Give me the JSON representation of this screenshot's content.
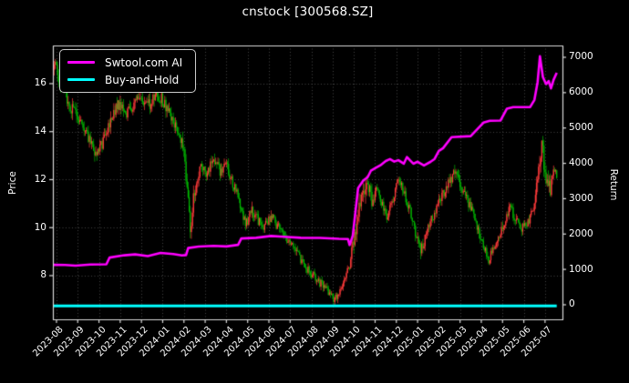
{
  "header": {
    "title": "cnstock [300568.SZ]"
  },
  "chart_data": {
    "type": "mixed",
    "title": "cnstock [300568.SZ]",
    "background": "#000000",
    "text_color": "#ffffff",
    "grid": {
      "on": true,
      "color": "#4d4d4d",
      "style": "dotted"
    },
    "spine_color": "#d9d9d9",
    "legend_position": "upper-left",
    "x_axis": {
      "tick_labels": [
        "2023-08",
        "2023-09",
        "2023-10",
        "2023-11",
        "2023-12",
        "2024-01",
        "2024-02",
        "2024-03",
        "2024-04",
        "2024-05",
        "2024-06",
        "2024-07",
        "2024-08",
        "2024-09",
        "2024-10",
        "2024-11",
        "2024-12",
        "2025-01",
        "2025-02",
        "2025-03",
        "2025-04",
        "2025-05",
        "2025-06",
        "2025-07"
      ],
      "range_months": [
        -0.17,
        23.82
      ],
      "tick_rotation_deg": 45
    },
    "left_axis": {
      "label": "Price",
      "ticks": [
        8,
        10,
        12,
        14,
        16
      ],
      "range": [
        6.18,
        17.59
      ]
    },
    "right_axis": {
      "label": "Return",
      "ticks": [
        0,
        1000,
        2000,
        3000,
        4000,
        5000,
        6000,
        7000
      ],
      "range": [
        -412,
        7334
      ]
    },
    "series": [
      {
        "name": "Swtool.com AI",
        "type": "line",
        "axis": "right",
        "color": "#ff00ff",
        "width": 2.6,
        "points": [
          [
            -0.17,
            1130
          ],
          [
            0.4,
            1125
          ],
          [
            0.9,
            1105
          ],
          [
            1.6,
            1140
          ],
          [
            2.35,
            1145
          ],
          [
            2.5,
            1335
          ],
          [
            3.2,
            1400
          ],
          [
            3.7,
            1425
          ],
          [
            4.3,
            1375
          ],
          [
            4.9,
            1465
          ],
          [
            5.5,
            1435
          ],
          [
            5.9,
            1395
          ],
          [
            6.1,
            1405
          ],
          [
            6.2,
            1605
          ],
          [
            6.7,
            1645
          ],
          [
            7.4,
            1665
          ],
          [
            8.0,
            1650
          ],
          [
            8.55,
            1695
          ],
          [
            8.7,
            1875
          ],
          [
            9.4,
            1895
          ],
          [
            10.1,
            1945
          ],
          [
            10.7,
            1925
          ],
          [
            11.5,
            1895
          ],
          [
            12.4,
            1890
          ],
          [
            13.3,
            1865
          ],
          [
            13.72,
            1860
          ],
          [
            13.8,
            1690
          ],
          [
            13.95,
            1960
          ],
          [
            14.05,
            2500
          ],
          [
            14.2,
            3300
          ],
          [
            14.45,
            3520
          ],
          [
            14.65,
            3610
          ],
          [
            14.8,
            3790
          ],
          [
            15.0,
            3860
          ],
          [
            15.25,
            3945
          ],
          [
            15.5,
            4065
          ],
          [
            15.7,
            4120
          ],
          [
            15.9,
            4050
          ],
          [
            16.1,
            4090
          ],
          [
            16.35,
            3990
          ],
          [
            16.5,
            4180
          ],
          [
            16.65,
            4080
          ],
          [
            16.8,
            3990
          ],
          [
            17.0,
            4045
          ],
          [
            17.3,
            3940
          ],
          [
            17.6,
            4040
          ],
          [
            17.8,
            4125
          ],
          [
            18.0,
            4350
          ],
          [
            18.2,
            4430
          ],
          [
            18.6,
            4740
          ],
          [
            19.5,
            4770
          ],
          [
            20.1,
            5150
          ],
          [
            20.4,
            5205
          ],
          [
            20.9,
            5210
          ],
          [
            21.2,
            5545
          ],
          [
            21.5,
            5590
          ],
          [
            22.3,
            5595
          ],
          [
            22.5,
            5795
          ],
          [
            22.65,
            6300
          ],
          [
            22.76,
            7030
          ],
          [
            22.9,
            6440
          ],
          [
            23.05,
            6240
          ],
          [
            23.17,
            6330
          ],
          [
            23.28,
            6120
          ],
          [
            23.4,
            6360
          ],
          [
            23.55,
            6560
          ]
        ]
      },
      {
        "name": "Buy-and-Hold",
        "type": "line",
        "axis": "right",
        "color": "#00ffff",
        "width": 3.0,
        "points": [
          [
            -0.17,
            -30
          ],
          [
            23.55,
            -30
          ]
        ]
      },
      {
        "name": "price-candles",
        "type": "candlestick",
        "axis": "left",
        "up_color": "#ff3a3a",
        "down_color": "#00b400",
        "candles_per_month": 20,
        "body_width": 1.3,
        "wick_width": 0.7,
        "seed": 42,
        "base_noise": 0.011,
        "default_extra_noise": 0.05,
        "wick_mult": 1.35,
        "extra_noise_zones": [
          [
            5.9,
            6.6,
            0.16
          ],
          [
            13.9,
            14.9,
            0.18
          ],
          [
            16.9,
            17.3,
            0.1
          ],
          [
            22.55,
            23.3,
            0.16
          ]
        ],
        "month_range": [
          -0.1,
          23.6
        ],
        "close_anchors": [
          [
            -0.17,
            16.9
          ],
          [
            0.0,
            16.5
          ],
          [
            0.3,
            15.8
          ],
          [
            0.6,
            15.1
          ],
          [
            1.0,
            14.6
          ],
          [
            1.5,
            13.7
          ],
          [
            1.85,
            13.1
          ],
          [
            2.2,
            13.6
          ],
          [
            2.6,
            14.6
          ],
          [
            3.0,
            15.2
          ],
          [
            3.35,
            14.7
          ],
          [
            3.7,
            15.3
          ],
          [
            4.0,
            15.5
          ],
          [
            4.3,
            15.0
          ],
          [
            4.65,
            15.6
          ],
          [
            5.0,
            15.3
          ],
          [
            5.35,
            14.6
          ],
          [
            5.7,
            14.1
          ],
          [
            5.95,
            13.4
          ],
          [
            6.15,
            11.6
          ],
          [
            6.3,
            9.8
          ],
          [
            6.5,
            11.6
          ],
          [
            6.8,
            12.6
          ],
          [
            7.1,
            12.2
          ],
          [
            7.4,
            12.9
          ],
          [
            7.7,
            12.3
          ],
          [
            8.0,
            12.6
          ],
          [
            8.3,
            11.8
          ],
          [
            8.6,
            11.2
          ],
          [
            8.9,
            10.1
          ],
          [
            9.2,
            10.7
          ],
          [
            9.5,
            10.3
          ],
          [
            9.8,
            10.0
          ],
          [
            10.1,
            10.5
          ],
          [
            10.45,
            10.0
          ],
          [
            10.8,
            9.6
          ],
          [
            11.1,
            9.2
          ],
          [
            11.4,
            8.8
          ],
          [
            11.7,
            8.4
          ],
          [
            12.0,
            8.1
          ],
          [
            12.3,
            7.8
          ],
          [
            12.6,
            7.5
          ],
          [
            12.85,
            7.3
          ],
          [
            13.1,
            7.0
          ],
          [
            13.3,
            7.3
          ],
          [
            13.55,
            7.8
          ],
          [
            13.8,
            8.4
          ],
          [
            14.0,
            9.3
          ],
          [
            14.2,
            10.5
          ],
          [
            14.45,
            11.5
          ],
          [
            14.65,
            11.9
          ],
          [
            14.85,
            11.0
          ],
          [
            15.1,
            11.6
          ],
          [
            15.35,
            10.9
          ],
          [
            15.55,
            10.4
          ],
          [
            15.8,
            11.1
          ],
          [
            16.0,
            11.8
          ],
          [
            16.2,
            12.0
          ],
          [
            16.45,
            11.2
          ],
          [
            16.7,
            10.5
          ],
          [
            16.9,
            9.8
          ],
          [
            17.15,
            9.0
          ],
          [
            17.4,
            9.7
          ],
          [
            17.65,
            10.3
          ],
          [
            17.9,
            10.9
          ],
          [
            18.2,
            11.4
          ],
          [
            18.5,
            11.9
          ],
          [
            18.75,
            12.3
          ],
          [
            19.0,
            11.8
          ],
          [
            19.3,
            11.2
          ],
          [
            19.6,
            10.6
          ],
          [
            19.9,
            9.8
          ],
          [
            20.15,
            9.1
          ],
          [
            20.35,
            8.6
          ],
          [
            20.6,
            9.3
          ],
          [
            20.85,
            9.6
          ],
          [
            21.1,
            10.2
          ],
          [
            21.35,
            10.9
          ],
          [
            21.6,
            10.4
          ],
          [
            21.9,
            10.0
          ],
          [
            22.2,
            10.3
          ],
          [
            22.45,
            10.7
          ],
          [
            22.7,
            12.6
          ],
          [
            22.85,
            13.4
          ],
          [
            23.05,
            12.0
          ],
          [
            23.25,
            11.7
          ],
          [
            23.45,
            12.5
          ],
          [
            23.6,
            12.2
          ]
        ]
      }
    ]
  }
}
